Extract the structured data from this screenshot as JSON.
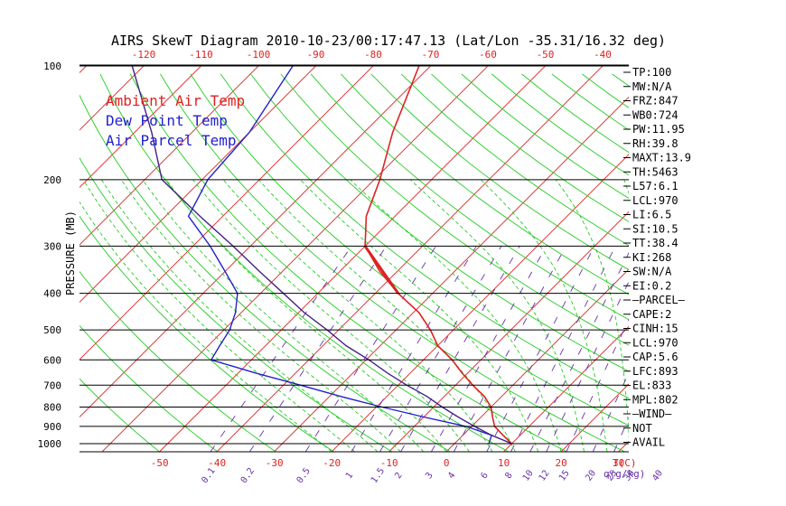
{
  "title": "AIRS SkewT Diagram 2010-10-23/00:17:47.13 (Lat/Lon -35.31/16.32 deg)",
  "ylabel": "PRESSURE (MB)",
  "temp_unit": "T(C)",
  "mixing_unit": "q(g/kg)",
  "legend": [
    {
      "label": "Ambient Air Temp",
      "color": "#dd2222"
    },
    {
      "label": "Dew Point Temp",
      "color": "#2222cc"
    },
    {
      "label": "Air Parcel Temp",
      "color": "#2222cc"
    }
  ],
  "colors": {
    "isotherm": "#dd2222",
    "dry_adiabat": "#22cc22",
    "moist_adiabat": "#22cc22",
    "mixing_ratio": "#6633aa",
    "ambient": "#dd2222",
    "dewpoint": "#2222cc",
    "parcel": "#442288",
    "isobar": "#000000"
  },
  "stats": [
    "TP:100",
    "MW:N/A",
    "FRZ:847",
    "WB0:724",
    "PW:11.95",
    "RH:39.8",
    "MAXT:13.9",
    "TH:5463",
    "L57:6.1",
    "LCL:970",
    "LI:6.5",
    "SI:10.5",
    "TT:38.4",
    "KI:268",
    "SW:N/A",
    "EI:0.2",
    "—PARCEL—",
    "CAPE:2",
    "CINH:15",
    "LCL:970",
    "CAP:5.6",
    "LFC:893",
    "EL:833",
    "MPL:802",
    "—WIND—",
    "NOT",
    "AVAIL"
  ],
  "top_temp_ticks": [
    "-120",
    "-110",
    "-100",
    "-90",
    "-80",
    "-70",
    "-60",
    "-50",
    "-40"
  ],
  "bottom_temp_ticks": [
    "-50",
    "-40",
    "-30",
    "-20",
    "-10",
    "0",
    "10",
    "20",
    "30"
  ],
  "pressure_ticks": [
    "100",
    "200",
    "300",
    "400",
    "500",
    "600",
    "700",
    "800",
    "900",
    "1000"
  ],
  "mixing_ticks": [
    "0.1",
    "0.2",
    "0.5",
    "1",
    "1.5",
    "2",
    "3",
    "4",
    "6",
    "8",
    "10",
    "12",
    "15",
    "20",
    "25",
    "30",
    "40"
  ],
  "chart_data": {
    "type": "line",
    "title": "AIRS SkewT Diagram 2010-10-23/00:17:47.13 (Lat/Lon -35.31/16.32 deg)",
    "xlabel": "T(C)",
    "ylabel": "PRESSURE (MB)",
    "x_range_bottom": [
      -50,
      30
    ],
    "x_range_top": [
      -120,
      -40
    ],
    "y_range": [
      1000,
      100
    ],
    "isobars": [
      100,
      200,
      300,
      400,
      500,
      600,
      700,
      800,
      900,
      1000
    ],
    "series": [
      {
        "name": "Ambient Air Temp",
        "pressure": [
          1000,
          950,
          900,
          850,
          800,
          750,
          700,
          650,
          600,
          550,
          500,
          450,
          400,
          350,
          300,
          250,
          200,
          150,
          100
        ],
        "temp": [
          10.0,
          7.0,
          4.0,
          2.0,
          0.0,
          -3.0,
          -7.0,
          -11.0,
          -15.0,
          -20.0,
          -24.0,
          -29.0,
          -36.0,
          -43.0,
          -50.0,
          -55.0,
          -59.0,
          -65.0,
          -72.0
        ]
      },
      {
        "name": "Dew Point Temp",
        "pressure": [
          1000,
          950,
          900,
          850,
          800,
          750,
          700,
          650,
          600,
          550,
          500,
          450,
          400,
          350,
          300,
          250,
          200,
          150,
          100
        ],
        "temp": [
          6.0,
          5.0,
          -1.0,
          -10.0,
          -19.0,
          -28.0,
          -37.0,
          -47.0,
          -57.0,
          -58.0,
          -59.0,
          -61.0,
          -64.0,
          -70.0,
          -77.0,
          -86.0,
          -89.0,
          -90.0,
          -94.0
        ]
      },
      {
        "name": "Air Parcel Temp",
        "pressure": [
          1000,
          950,
          900,
          850,
          800,
          750,
          700,
          650,
          600,
          550,
          500,
          450,
          400,
          350,
          300,
          250,
          200,
          150,
          100
        ],
        "temp": [
          10.0,
          5.0,
          0.5,
          -4.0,
          -8.5,
          -13.0,
          -18.5,
          -24.0,
          -29.5,
          -36.0,
          -42.0,
          -49.0,
          -56.0,
          -64.0,
          -73.0,
          -84.0,
          -97.0,
          -107.0,
          -122.0
        ]
      }
    ]
  }
}
